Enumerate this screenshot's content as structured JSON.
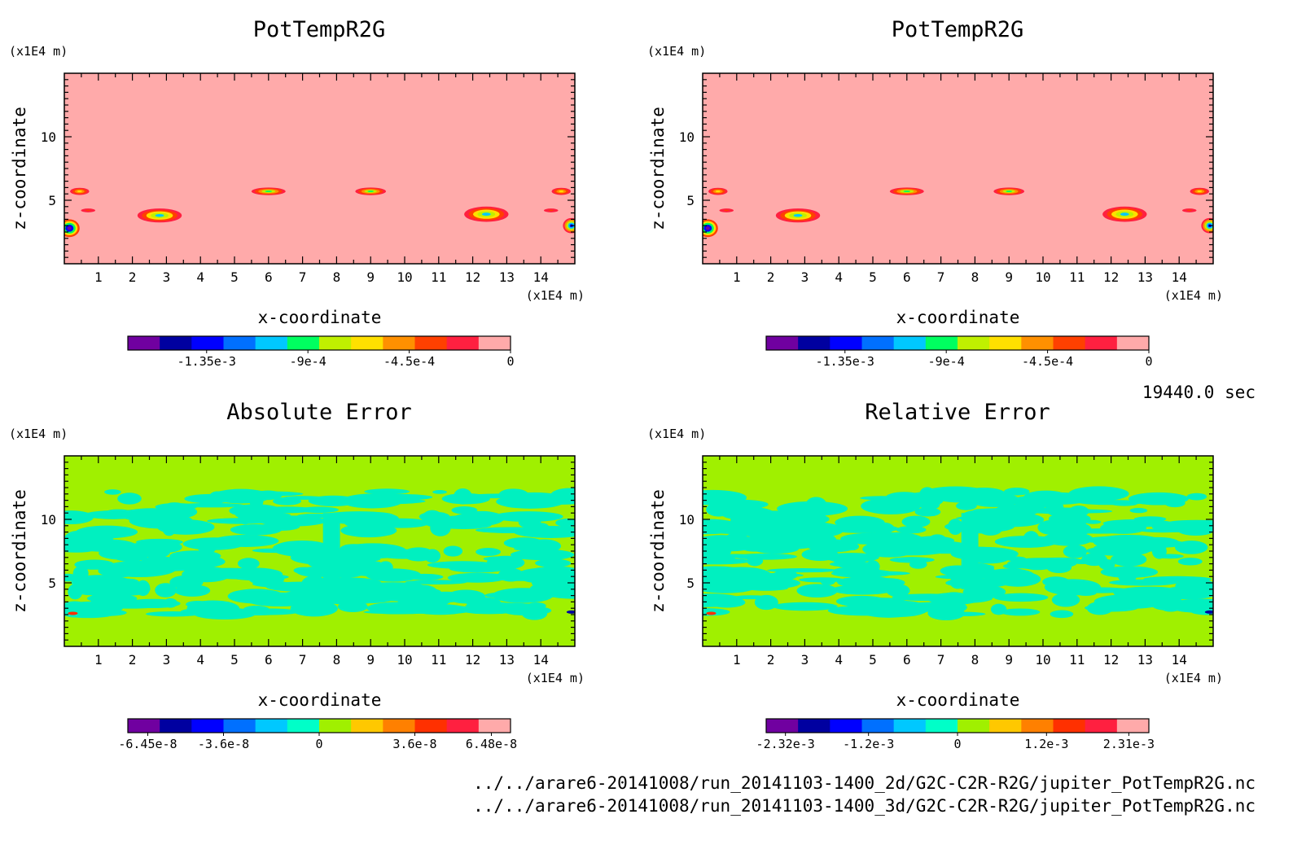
{
  "time_label": "19440.0 sec",
  "files": [
    "../../arare6-20141008/run_20141103-1400_2d/G2C-C2R-R2G/jupiter_PotTempR2G.nc",
    "../../arare6-20141008/run_20141103-1400_3d/G2C-C2R-R2G/jupiter_PotTempR2G.nc"
  ],
  "chart_data": [
    {
      "type": "heatmap",
      "title": "PotTempR2G",
      "xlabel": "x-coordinate",
      "ylabel": "z-coordinate",
      "x_unit": "(x1E4 m)",
      "y_unit": "(x1E4 m)",
      "xlim": [
        0,
        15
      ],
      "ylim": [
        0,
        15
      ],
      "xticks": [
        "1",
        "2",
        "3",
        "4",
        "5",
        "6",
        "7",
        "8",
        "9",
        "10",
        "11",
        "12",
        "13",
        "14"
      ],
      "yticks": [
        "5",
        "10"
      ],
      "background_color": "#ffaaaa",
      "colorbar": {
        "colors": [
          "#7000a0",
          "#0000a0",
          "#0000ff",
          "#0070ff",
          "#00c8ff",
          "#00ff60",
          "#c0f000",
          "#ffe000",
          "#ff9000",
          "#ff4000",
          "#ff2040",
          "#ffaaaa"
        ],
        "ticks": [
          "-1.35e-3",
          "-9e-4",
          "-4.5e-4",
          "0"
        ],
        "tick_values": [
          -0.00135,
          -0.0009,
          -0.00045,
          0
        ],
        "range": [
          -0.0017,
          0
        ]
      },
      "features": [
        {
          "x": 2.8,
          "z": 3.8,
          "rx": 0.65,
          "rz": 0.55,
          "min": -0.001
        },
        {
          "x": 12.4,
          "z": 3.9,
          "rx": 0.65,
          "rz": 0.6,
          "min": -0.001
        },
        {
          "x": 6.0,
          "z": 5.7,
          "rx": 0.5,
          "rz": 0.3,
          "min": -0.0009
        },
        {
          "x": 9.0,
          "z": 5.7,
          "rx": 0.45,
          "rz": 0.3,
          "min": -0.0009
        },
        {
          "x": 0.45,
          "z": 5.7,
          "rx": 0.35,
          "rz": 0.35,
          "min": -0.0006
        },
        {
          "x": 14.6,
          "z": 5.7,
          "rx": 0.35,
          "rz": 0.35,
          "min": -0.0006
        },
        {
          "x": 0.7,
          "z": 4.2,
          "rx": 0.35,
          "rz": 0.25,
          "min": -0.0003
        },
        {
          "x": 14.3,
          "z": 4.2,
          "rx": 0.35,
          "rz": 0.25,
          "min": -0.0003
        },
        {
          "x": 0.15,
          "z": 2.8,
          "rx": 0.3,
          "rz": 0.7,
          "min": -0.0016
        },
        {
          "x": 14.9,
          "z": 3.0,
          "rx": 0.25,
          "rz": 0.6,
          "min": -0.0013
        }
      ]
    },
    {
      "type": "heatmap",
      "title": "PotTempR2G",
      "xlabel": "x-coordinate",
      "ylabel": "z-coordinate",
      "x_unit": "(x1E4 m)",
      "y_unit": "(x1E4 m)",
      "xlim": [
        0,
        15
      ],
      "ylim": [
        0,
        15
      ],
      "xticks": [
        "1",
        "2",
        "3",
        "4",
        "5",
        "6",
        "7",
        "8",
        "9",
        "10",
        "11",
        "12",
        "13",
        "14"
      ],
      "yticks": [
        "5",
        "10"
      ],
      "background_color": "#ffaaaa",
      "colorbar": {
        "colors": [
          "#7000a0",
          "#0000a0",
          "#0000ff",
          "#0070ff",
          "#00c8ff",
          "#00ff60",
          "#c0f000",
          "#ffe000",
          "#ff9000",
          "#ff4000",
          "#ff2040",
          "#ffaaaa"
        ],
        "ticks": [
          "-1.35e-3",
          "-9e-4",
          "-4.5e-4",
          "0"
        ],
        "tick_values": [
          -0.00135,
          -0.0009,
          -0.00045,
          0
        ],
        "range": [
          -0.0017,
          0
        ]
      },
      "features": [
        {
          "x": 2.8,
          "z": 3.8,
          "rx": 0.65,
          "rz": 0.55,
          "min": -0.001
        },
        {
          "x": 12.4,
          "z": 3.9,
          "rx": 0.65,
          "rz": 0.6,
          "min": -0.001
        },
        {
          "x": 6.0,
          "z": 5.7,
          "rx": 0.5,
          "rz": 0.3,
          "min": -0.0009
        },
        {
          "x": 9.0,
          "z": 5.7,
          "rx": 0.45,
          "rz": 0.3,
          "min": -0.0009
        },
        {
          "x": 0.45,
          "z": 5.7,
          "rx": 0.35,
          "rz": 0.35,
          "min": -0.0006
        },
        {
          "x": 14.6,
          "z": 5.7,
          "rx": 0.35,
          "rz": 0.35,
          "min": -0.0006
        },
        {
          "x": 0.7,
          "z": 4.2,
          "rx": 0.35,
          "rz": 0.25,
          "min": -0.0003
        },
        {
          "x": 14.3,
          "z": 4.2,
          "rx": 0.35,
          "rz": 0.25,
          "min": -0.0003
        },
        {
          "x": 0.15,
          "z": 2.8,
          "rx": 0.3,
          "rz": 0.7,
          "min": -0.0016
        },
        {
          "x": 14.9,
          "z": 3.0,
          "rx": 0.25,
          "rz": 0.6,
          "min": -0.0013
        }
      ]
    },
    {
      "type": "heatmap",
      "title": "Absolute Error",
      "xlabel": "x-coordinate",
      "ylabel": "z-coordinate",
      "x_unit": "(x1E4 m)",
      "y_unit": "(x1E4 m)",
      "xlim": [
        0,
        15
      ],
      "ylim": [
        0,
        15
      ],
      "xticks": [
        "1",
        "2",
        "3",
        "4",
        "5",
        "6",
        "7",
        "8",
        "9",
        "10",
        "11",
        "12",
        "13",
        "14"
      ],
      "yticks": [
        "5",
        "10"
      ],
      "background_color": "#a0f000",
      "pattern_color": "#00f0c0",
      "colorbar": {
        "colors": [
          "#7000a0",
          "#0000a0",
          "#0000ff",
          "#0070ff",
          "#00c8ff",
          "#00ffc8",
          "#a0f000",
          "#ffc800",
          "#ff8000",
          "#ff3000",
          "#ff2040",
          "#ffaaaa"
        ],
        "ticks": [
          "-6.45e-8",
          "-3.6e-8",
          "0",
          "3.6e-8",
          "6.48e-8"
        ],
        "tick_values": [
          -6.45e-08,
          -3.6e-08,
          0,
          3.6e-08,
          6.48e-08
        ],
        "range": [
          -7.2e-08,
          7.2e-08
        ]
      }
    },
    {
      "type": "heatmap",
      "title": "Relative Error",
      "xlabel": "x-coordinate",
      "ylabel": "z-coordinate",
      "x_unit": "(x1E4 m)",
      "y_unit": "(x1E4 m)",
      "xlim": [
        0,
        15
      ],
      "ylim": [
        0,
        15
      ],
      "xticks": [
        "1",
        "2",
        "3",
        "4",
        "5",
        "6",
        "7",
        "8",
        "9",
        "10",
        "11",
        "12",
        "13",
        "14"
      ],
      "yticks": [
        "5",
        "10"
      ],
      "background_color": "#a0f000",
      "pattern_color": "#00f0c0",
      "colorbar": {
        "colors": [
          "#7000a0",
          "#0000a0",
          "#0000ff",
          "#0070ff",
          "#00c8ff",
          "#00ffc8",
          "#a0f000",
          "#ffc800",
          "#ff8000",
          "#ff3000",
          "#ff2040",
          "#ffaaaa"
        ],
        "ticks": [
          "-2.32e-3",
          "-1.2e-3",
          "0",
          "1.2e-3",
          "2.31e-3"
        ],
        "tick_values": [
          -0.00232,
          -0.0012,
          0,
          0.0012,
          0.00231
        ],
        "range": [
          -0.00258,
          0.00258
        ]
      }
    }
  ]
}
